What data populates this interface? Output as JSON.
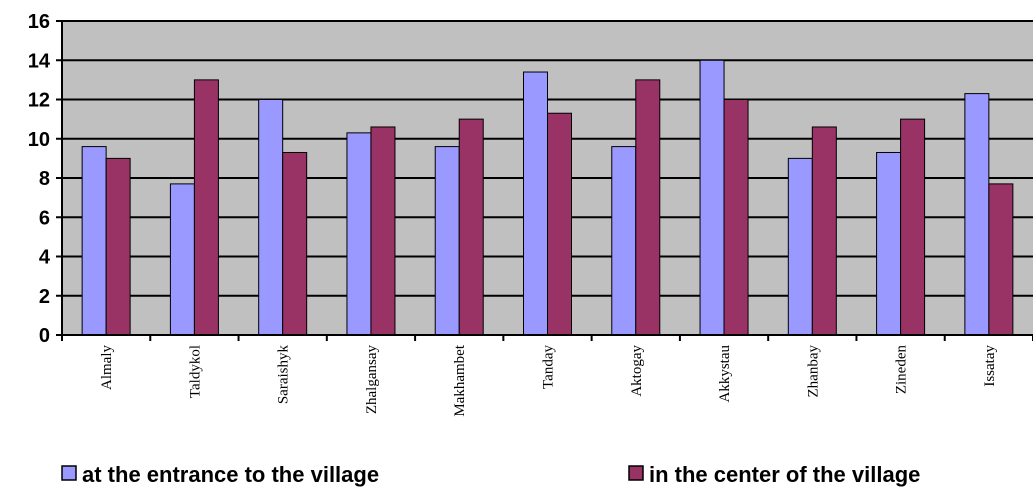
{
  "chart_data": {
    "type": "bar",
    "title": "",
    "xlabel": "",
    "ylabel": "",
    "ylim": [
      0,
      16
    ],
    "yticks": [
      0,
      2,
      4,
      6,
      8,
      10,
      12,
      14,
      16
    ],
    "grid": "horizontal",
    "legend_position": "bottom",
    "plot_background": "#c0c0c0",
    "categories": [
      "Almaly",
      "Taldykol",
      "Saraishyk",
      "Zhalgansay",
      "Makhambet",
      "Tanday",
      "Aktogay",
      "Akkystau",
      "Zhanbay",
      "Zineden",
      "Issatay"
    ],
    "series": [
      {
        "name": "at the entrance to the village",
        "color": "#9999ff",
        "values": [
          9.6,
          7.7,
          12.0,
          10.3,
          9.6,
          13.4,
          9.6,
          14.0,
          9.0,
          9.3,
          12.3
        ]
      },
      {
        "name": "in the center of the village",
        "color": "#993366",
        "values": [
          9.0,
          13.0,
          9.3,
          10.6,
          11.0,
          11.3,
          13.0,
          12.0,
          10.6,
          11.0,
          7.7
        ]
      }
    ]
  }
}
